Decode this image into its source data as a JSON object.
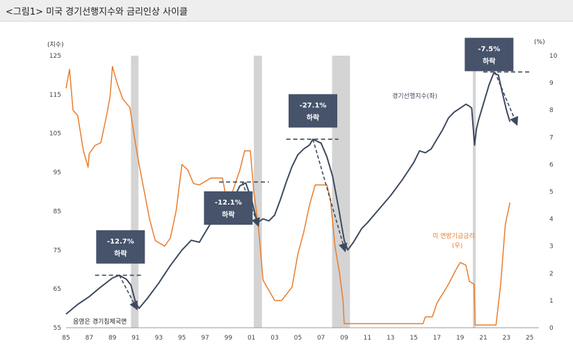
{
  "header": {
    "title": "<그림1> 미국 경기선행지수와 금리인상 사이클"
  },
  "chart_data": {
    "type": "line",
    "left_axis": {
      "unit": "(지수)",
      "min": 55,
      "max": 125,
      "ticks": [
        55,
        65,
        75,
        85,
        95,
        105,
        115,
        125
      ]
    },
    "right_axis": {
      "unit": "(%)",
      "min": 0,
      "max": 10,
      "ticks": [
        0,
        1,
        2,
        3,
        4,
        5,
        6,
        7,
        8,
        9,
        10
      ]
    },
    "x_axis": {
      "min": 1985,
      "max": 2025.8,
      "tick_years": [
        1985,
        1987,
        1989,
        1991,
        1993,
        1995,
        1997,
        1999,
        2001,
        2003,
        2005,
        2007,
        2009,
        2011,
        2013,
        2015,
        2017,
        2019,
        2021,
        2023,
        2025
      ],
      "tick_labels": [
        "85",
        "87",
        "89",
        "91",
        "93",
        "95",
        "97",
        "99",
        "01",
        "03",
        "05",
        "07",
        "09",
        "11",
        "13",
        "15",
        "17",
        "19",
        "21",
        "23",
        "25"
      ]
    },
    "recessions": [
      {
        "start": 1990.6,
        "end": 1991.25
      },
      {
        "start": 2001.2,
        "end": 2001.9
      },
      {
        "start": 2007.95,
        "end": 2009.5
      },
      {
        "start": 2020.1,
        "end": 2020.35
      }
    ],
    "recession_label": "음영은 경기침체국면",
    "series": [
      {
        "name": "경기선행지수(좌)",
        "axis": "left",
        "color": "#3d4a5e",
        "x": [
          1985.0,
          1986.0,
          1987.0,
          1988.0,
          1989.0,
          1989.6,
          1990.2,
          1990.6,
          1991.0,
          1991.3,
          1992.0,
          1993.0,
          1994.0,
          1995.0,
          1995.8,
          1996.5,
          1997.5,
          1998.5,
          1999.5,
          2000.0,
          2000.5,
          2001.0,
          2001.5,
          2002.0,
          2002.5,
          2003.0,
          2003.5,
          2004.0,
          2004.5,
          2005.0,
          2005.5,
          2006.0,
          2006.3,
          2007.0,
          2007.5,
          2008.0,
          2008.5,
          2009.0,
          2009.3,
          2009.8,
          2010.5,
          2011.0,
          2012.0,
          2013.0,
          2014.0,
          2015.0,
          2015.5,
          2016.0,
          2016.5,
          2017.0,
          2017.5,
          2018.0,
          2018.5,
          2019.0,
          2019.5,
          2019.8,
          2020.0,
          2020.25,
          2020.4,
          2020.6,
          2021.0,
          2021.5,
          2021.9,
          2022.3,
          2022.6,
          2023.0,
          2023.3
        ],
        "y": [
          58.5,
          61.0,
          63.0,
          65.5,
          67.8,
          68.5,
          67.5,
          66.0,
          61.5,
          60.0,
          62.5,
          66.5,
          71.0,
          75.0,
          77.5,
          77.0,
          82.0,
          86.0,
          88.5,
          91.5,
          92.3,
          88.0,
          82.0,
          83.0,
          82.5,
          84.0,
          88.0,
          92.5,
          96.5,
          99.5,
          101.0,
          102.0,
          103.5,
          102.5,
          99.0,
          94.0,
          86.0,
          77.5,
          75.0,
          77.0,
          80.5,
          82.0,
          85.5,
          89.0,
          93.0,
          97.5,
          100.5,
          100.0,
          101.0,
          103.5,
          106.0,
          109.0,
          110.5,
          111.5,
          112.5,
          112.0,
          111.5,
          102.0,
          106.0,
          108.5,
          112.5,
          117.5,
          120.5,
          120.0,
          116.0,
          111.0,
          108.0
        ]
      },
      {
        "name": "미 연방기금금리",
        "axis": "right",
        "color": "#e87c2c",
        "x": [
          1985.0,
          1985.3,
          1985.6,
          1986.0,
          1986.5,
          1986.9,
          1987.0,
          1987.5,
          1988.0,
          1988.5,
          1988.8,
          1989.0,
          1989.4,
          1989.9,
          1990.5,
          1990.9,
          1991.3,
          1991.8,
          1992.2,
          1992.7,
          1993.5,
          1994.0,
          1994.5,
          1995.0,
          1995.5,
          1996.0,
          1996.5,
          1997.5,
          1998.5,
          1998.8,
          1999.2,
          1999.6,
          2000.0,
          2000.4,
          2000.9,
          2001.2,
          2001.6,
          2002.0,
          2003.0,
          2003.6,
          2004.5,
          2005.0,
          2005.5,
          2006.0,
          2006.5,
          2007.5,
          2007.8,
          2008.2,
          2008.6,
          2008.9,
          2009.0,
          2015.8,
          2016.0,
          2016.6,
          2017.0,
          2017.5,
          2018.0,
          2018.6,
          2019.0,
          2019.5,
          2019.8,
          2020.2,
          2020.3,
          2022.1,
          2022.5,
          2022.9,
          2023.3
        ],
        "y": [
          8.8,
          9.5,
          8.0,
          7.8,
          6.5,
          5.9,
          6.4,
          6.7,
          6.8,
          7.8,
          8.5,
          9.6,
          9.0,
          8.4,
          8.1,
          7.0,
          6.0,
          4.9,
          4.0,
          3.2,
          3.0,
          3.3,
          4.3,
          6.0,
          5.8,
          5.3,
          5.25,
          5.5,
          5.5,
          4.8,
          4.8,
          5.3,
          5.8,
          6.5,
          6.5,
          5.0,
          3.7,
          1.75,
          1.0,
          1.0,
          1.5,
          2.7,
          3.5,
          4.5,
          5.25,
          5.25,
          4.75,
          3.0,
          2.0,
          1.0,
          0.15,
          0.15,
          0.4,
          0.4,
          0.9,
          1.25,
          1.6,
          2.1,
          2.4,
          2.3,
          1.7,
          1.6,
          0.1,
          0.1,
          1.6,
          3.8,
          4.6
        ]
      }
    ],
    "series_labels": [
      {
        "text": "경기선행지수(좌)",
        "color": "#3d4a5e"
      },
      {
        "text": "미 연방기금금리",
        "color": "#e87c2c"
      },
      {
        "text": "(우)",
        "color": "#e87c2c"
      }
    ],
    "annotations": [
      {
        "pct": "-12.7%",
        "label": "하락",
        "box_x": 1989.7,
        "box_y": 71.5,
        "peak_x": 1989.6,
        "peak_y": 68.5,
        "peak_from": 1987.5,
        "peak_to": 1991.7,
        "arrow_to_x": 1991.0,
        "arrow_to_y": 60.5
      },
      {
        "pct": "-12.1%",
        "label": "하락",
        "box_x": 1999.0,
        "box_y": 81.5,
        "peak_x": 2000.2,
        "peak_y": 92.5,
        "peak_from": 1998.2,
        "peak_to": 2002.5,
        "arrow_to_x": 2001.5,
        "arrow_to_y": 82.0
      },
      {
        "pct": "-27.1%",
        "label": "하락",
        "box_x": 2006.3,
        "box_y": 106.5,
        "peak_x": 2006.3,
        "peak_y": 103.5,
        "peak_from": 2004.0,
        "peak_to": 2008.5,
        "arrow_to_x": 2009.0,
        "arrow_to_y": 75.5
      },
      {
        "pct": "-7.5%",
        "label": "하락",
        "box_x": 2021.5,
        "box_y": 121.0,
        "peak_x": 2022.0,
        "peak_y": 120.8,
        "peak_from": 2021.0,
        "peak_to": 2025.0,
        "arrow_to_x": 2023.8,
        "arrow_to_y": 108.0
      }
    ]
  }
}
